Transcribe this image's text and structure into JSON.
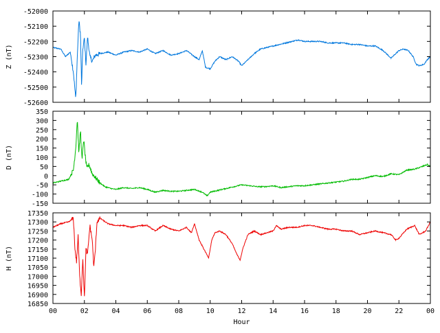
{
  "chart_data": [
    {
      "type": "line",
      "ylabel": "Z (nT)",
      "ylim": [
        -52600,
        -52000
      ],
      "yticks": [
        -52000,
        -52100,
        -52200,
        -52300,
        -52400,
        -52500,
        -52600
      ],
      "xlim": [
        0,
        24
      ],
      "xticks_shown": false,
      "grid": false,
      "color": "#0077dd",
      "series": [
        {
          "x": [
            0,
            0.5,
            0.8,
            1.1,
            1.3,
            1.45,
            1.55,
            1.65,
            1.75,
            1.82,
            1.9,
            2.0,
            2.1,
            2.2,
            2.35,
            2.5,
            2.7,
            3.0,
            3.5,
            4.0,
            4.5,
            5.0,
            5.5,
            6.0,
            6.5,
            7.0,
            7.5,
            8.0,
            8.5,
            9.0,
            9.3,
            9.5,
            9.7,
            10.0,
            10.3,
            10.6,
            11.0,
            11.4,
            11.8,
            12.0,
            12.4,
            12.8,
            13.2,
            13.6,
            14.0,
            14.4,
            14.8,
            15.2,
            15.6,
            16.0,
            16.5,
            17.0,
            17.5,
            18.0,
            18.5,
            19.0,
            19.5,
            20.0,
            20.5,
            21.0,
            21.5,
            21.8,
            22.0,
            22.3,
            22.6,
            22.9,
            23.1,
            23.3,
            23.6,
            23.8,
            24.0
          ],
          "values": [
            -52240,
            -52250,
            -52300,
            -52270,
            -52400,
            -52580,
            -52300,
            -52060,
            -52150,
            -52490,
            -52250,
            -52180,
            -52350,
            -52170,
            -52300,
            -52330,
            -52290,
            -52280,
            -52270,
            -52290,
            -52270,
            -52260,
            -52270,
            -52250,
            -52280,
            -52260,
            -52290,
            -52280,
            -52260,
            -52300,
            -52320,
            -52260,
            -52370,
            -52380,
            -52330,
            -52300,
            -52320,
            -52300,
            -52330,
            -52360,
            -52320,
            -52280,
            -52250,
            -52240,
            -52230,
            -52220,
            -52210,
            -52200,
            -52190,
            -52200,
            -52200,
            -52200,
            -52210,
            -52210,
            -52210,
            -52220,
            -52220,
            -52230,
            -52230,
            -52260,
            -52310,
            -52280,
            -52260,
            -52250,
            -52260,
            -52300,
            -52350,
            -52360,
            -52350,
            -52320,
            -52300
          ]
        }
      ]
    },
    {
      "type": "line",
      "ylabel": "D (nT)",
      "ylim": [
        -150,
        350
      ],
      "yticks": [
        350,
        300,
        250,
        200,
        150,
        100,
        50,
        0,
        -50,
        -100,
        -150
      ],
      "xlim": [
        0,
        24
      ],
      "xticks_shown": false,
      "grid": false,
      "color": "#00bb00",
      "series": [
        {
          "x": [
            0,
            0.5,
            1.0,
            1.3,
            1.45,
            1.55,
            1.65,
            1.75,
            1.85,
            1.95,
            2.05,
            2.15,
            2.3,
            2.5,
            2.7,
            3.0,
            3.3,
            3.7,
            4.0,
            4.5,
            5.0,
            5.5,
            6.0,
            6.5,
            7.0,
            7.5,
            8.0,
            8.5,
            9.0,
            9.5,
            9.8,
            10.0,
            10.5,
            11.0,
            11.5,
            12.0,
            12.5,
            13.0,
            13.5,
            14.0,
            14.5,
            15.0,
            15.5,
            16.0,
            16.5,
            17.0,
            17.5,
            18.0,
            18.5,
            19.0,
            19.5,
            20.0,
            20.5,
            21.0,
            21.5,
            22.0,
            22.5,
            23.0,
            23.5,
            23.8,
            24.0
          ],
          "values": [
            -40,
            -30,
            -20,
            30,
            150,
            310,
            120,
            250,
            80,
            200,
            110,
            40,
            60,
            10,
            -10,
            -40,
            -60,
            -70,
            -75,
            -65,
            -70,
            -65,
            -75,
            -90,
            -80,
            -85,
            -85,
            -80,
            -75,
            -90,
            -110,
            -90,
            -80,
            -70,
            -60,
            -50,
            -55,
            -60,
            -60,
            -55,
            -65,
            -60,
            -55,
            -55,
            -50,
            -45,
            -40,
            -35,
            -30,
            -20,
            -20,
            -10,
            0,
            -5,
            10,
            5,
            30,
            35,
            50,
            60,
            50
          ]
        }
      ]
    },
    {
      "type": "line",
      "ylabel": "H (nT)",
      "xlabel": "Hour",
      "ylim": [
        16850,
        17350
      ],
      "yticks": [
        17350,
        17300,
        17250,
        17200,
        17150,
        17100,
        17050,
        17000,
        16950,
        16900,
        16850
      ],
      "xlim": [
        0,
        24
      ],
      "xticks": [
        "00",
        "02",
        "04",
        "06",
        "08",
        "10",
        "12",
        "14",
        "16",
        "18",
        "20",
        "22",
        "00"
      ],
      "grid": false,
      "color": "#ee0000",
      "series": [
        {
          "x": [
            0,
            0.5,
            1.0,
            1.3,
            1.4,
            1.5,
            1.6,
            1.7,
            1.8,
            1.9,
            2.0,
            2.1,
            2.2,
            2.35,
            2.5,
            2.6,
            2.7,
            2.8,
            3.0,
            3.5,
            4.0,
            4.5,
            5.0,
            5.5,
            6.0,
            6.5,
            7.0,
            7.5,
            8.0,
            8.5,
            8.8,
            9.0,
            9.3,
            9.6,
            9.9,
            10.1,
            10.3,
            10.6,
            11.0,
            11.4,
            11.7,
            11.9,
            12.1,
            12.4,
            12.8,
            13.2,
            13.6,
            14.0,
            14.2,
            14.5,
            15.0,
            15.5,
            16.0,
            16.5,
            17.0,
            17.5,
            18.0,
            18.5,
            19.0,
            19.5,
            20.0,
            20.5,
            21.0,
            21.5,
            21.8,
            22.0,
            22.5,
            23.0,
            23.3,
            23.7,
            24.0
          ],
          "values": [
            17270,
            17290,
            17300,
            17320,
            17150,
            17080,
            17220,
            17000,
            16900,
            17100,
            16880,
            17150,
            17120,
            17280,
            17200,
            17050,
            17150,
            17300,
            17320,
            17290,
            17280,
            17280,
            17270,
            17280,
            17280,
            17250,
            17280,
            17260,
            17250,
            17270,
            17240,
            17290,
            17200,
            17150,
            17100,
            17200,
            17240,
            17250,
            17230,
            17180,
            17120,
            17090,
            17160,
            17230,
            17250,
            17230,
            17240,
            17250,
            17280,
            17260,
            17270,
            17270,
            17280,
            17280,
            17270,
            17260,
            17260,
            17250,
            17250,
            17230,
            17240,
            17250,
            17240,
            17230,
            17200,
            17210,
            17260,
            17280,
            17230,
            17250,
            17300
          ]
        }
      ]
    }
  ]
}
